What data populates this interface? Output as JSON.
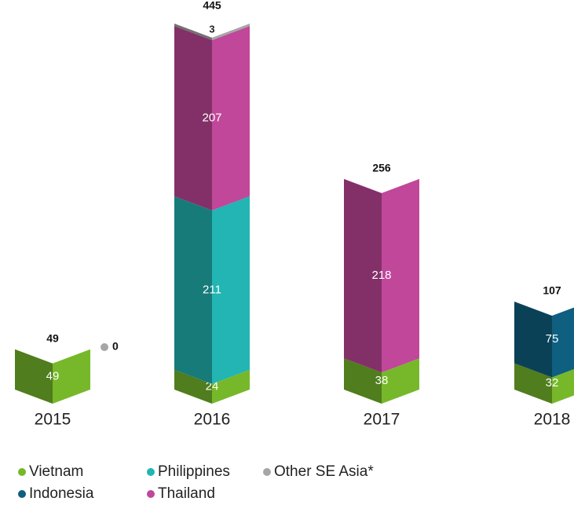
{
  "chart_data": {
    "type": "folded-stacked-bar",
    "categories": [
      "2015",
      "2016",
      "2017",
      "2018"
    ],
    "totals": [
      49,
      445,
      256,
      107
    ],
    "series": [
      {
        "name": "Vietnam",
        "color": "#76b82a",
        "values": [
          49,
          24,
          38,
          32
        ]
      },
      {
        "name": "Indonesia",
        "color": "#0e5f80",
        "values": [
          null,
          null,
          null,
          75
        ]
      },
      {
        "name": "Philippines",
        "color": "#22b5b3",
        "values": [
          null,
          211,
          null,
          null
        ]
      },
      {
        "name": "Thailand",
        "color": "#c0479a",
        "values": [
          null,
          207,
          218,
          null
        ]
      },
      {
        "name": "Other SE Asia*",
        "color": "#a6a6a6",
        "values": [
          0,
          3,
          null,
          null
        ]
      }
    ]
  }
}
